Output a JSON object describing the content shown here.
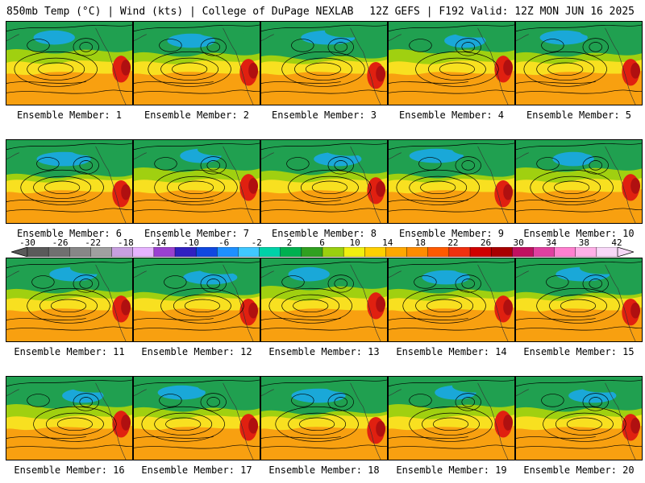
{
  "header": {
    "left": "850mb Temp (°C) | Wind (kts) | College of DuPage NEXLAB",
    "right": "12Z GEFS | F192 Valid: 12Z MON JUN 16 2025"
  },
  "members": [
    {
      "label": "Ensemble Member: 1"
    },
    {
      "label": "Ensemble Member: 2"
    },
    {
      "label": "Ensemble Member: 3"
    },
    {
      "label": "Ensemble Member: 4"
    },
    {
      "label": "Ensemble Member: 5"
    },
    {
      "label": "Ensemble Member: 6"
    },
    {
      "label": "Ensemble Member: 7"
    },
    {
      "label": "Ensemble Member: 8"
    },
    {
      "label": "Ensemble Member: 9"
    },
    {
      "label": "Ensemble Member: 10"
    },
    {
      "label": "Ensemble Member: 11"
    },
    {
      "label": "Ensemble Member: 12"
    },
    {
      "label": "Ensemble Member: 13"
    },
    {
      "label": "Ensemble Member: 14"
    },
    {
      "label": "Ensemble Member: 15"
    },
    {
      "label": "Ensemble Member: 16"
    },
    {
      "label": "Ensemble Member: 17"
    },
    {
      "label": "Ensemble Member: 18"
    },
    {
      "label": "Ensemble Member: 19"
    },
    {
      "label": "Ensemble Member: 20"
    }
  ],
  "colorbar": {
    "ticks": [
      "-30",
      "-26",
      "-22",
      "-18",
      "-14",
      "-10",
      "-6",
      "-2",
      "2",
      "6",
      "10",
      "14",
      "18",
      "22",
      "26",
      "30",
      "34",
      "38",
      "42"
    ],
    "colors": [
      "#5a5a5a",
      "#707070",
      "#878787",
      "#a0a0a0",
      "#c8a0e0",
      "#e6b4ff",
      "#9a40d0",
      "#3020c0",
      "#1048e0",
      "#1e90ff",
      "#40c8ff",
      "#00d2a8",
      "#00b050",
      "#30a020",
      "#9ad010",
      "#f0f010",
      "#ffd000",
      "#ffa800",
      "#ff8c00",
      "#ff5a00",
      "#f03010",
      "#d00000",
      "#a80000",
      "#c01060",
      "#e040a0",
      "#ff80d0",
      "#ffb0e8",
      "#f8d8f8"
    ]
  },
  "palette": {
    "cold": "#1aa8d8",
    "cool": "#20a050",
    "mild": "#a0d010",
    "warm": "#f8e020",
    "hot": "#f8a010",
    "heat": "#e02010",
    "contour": "#000000"
  }
}
